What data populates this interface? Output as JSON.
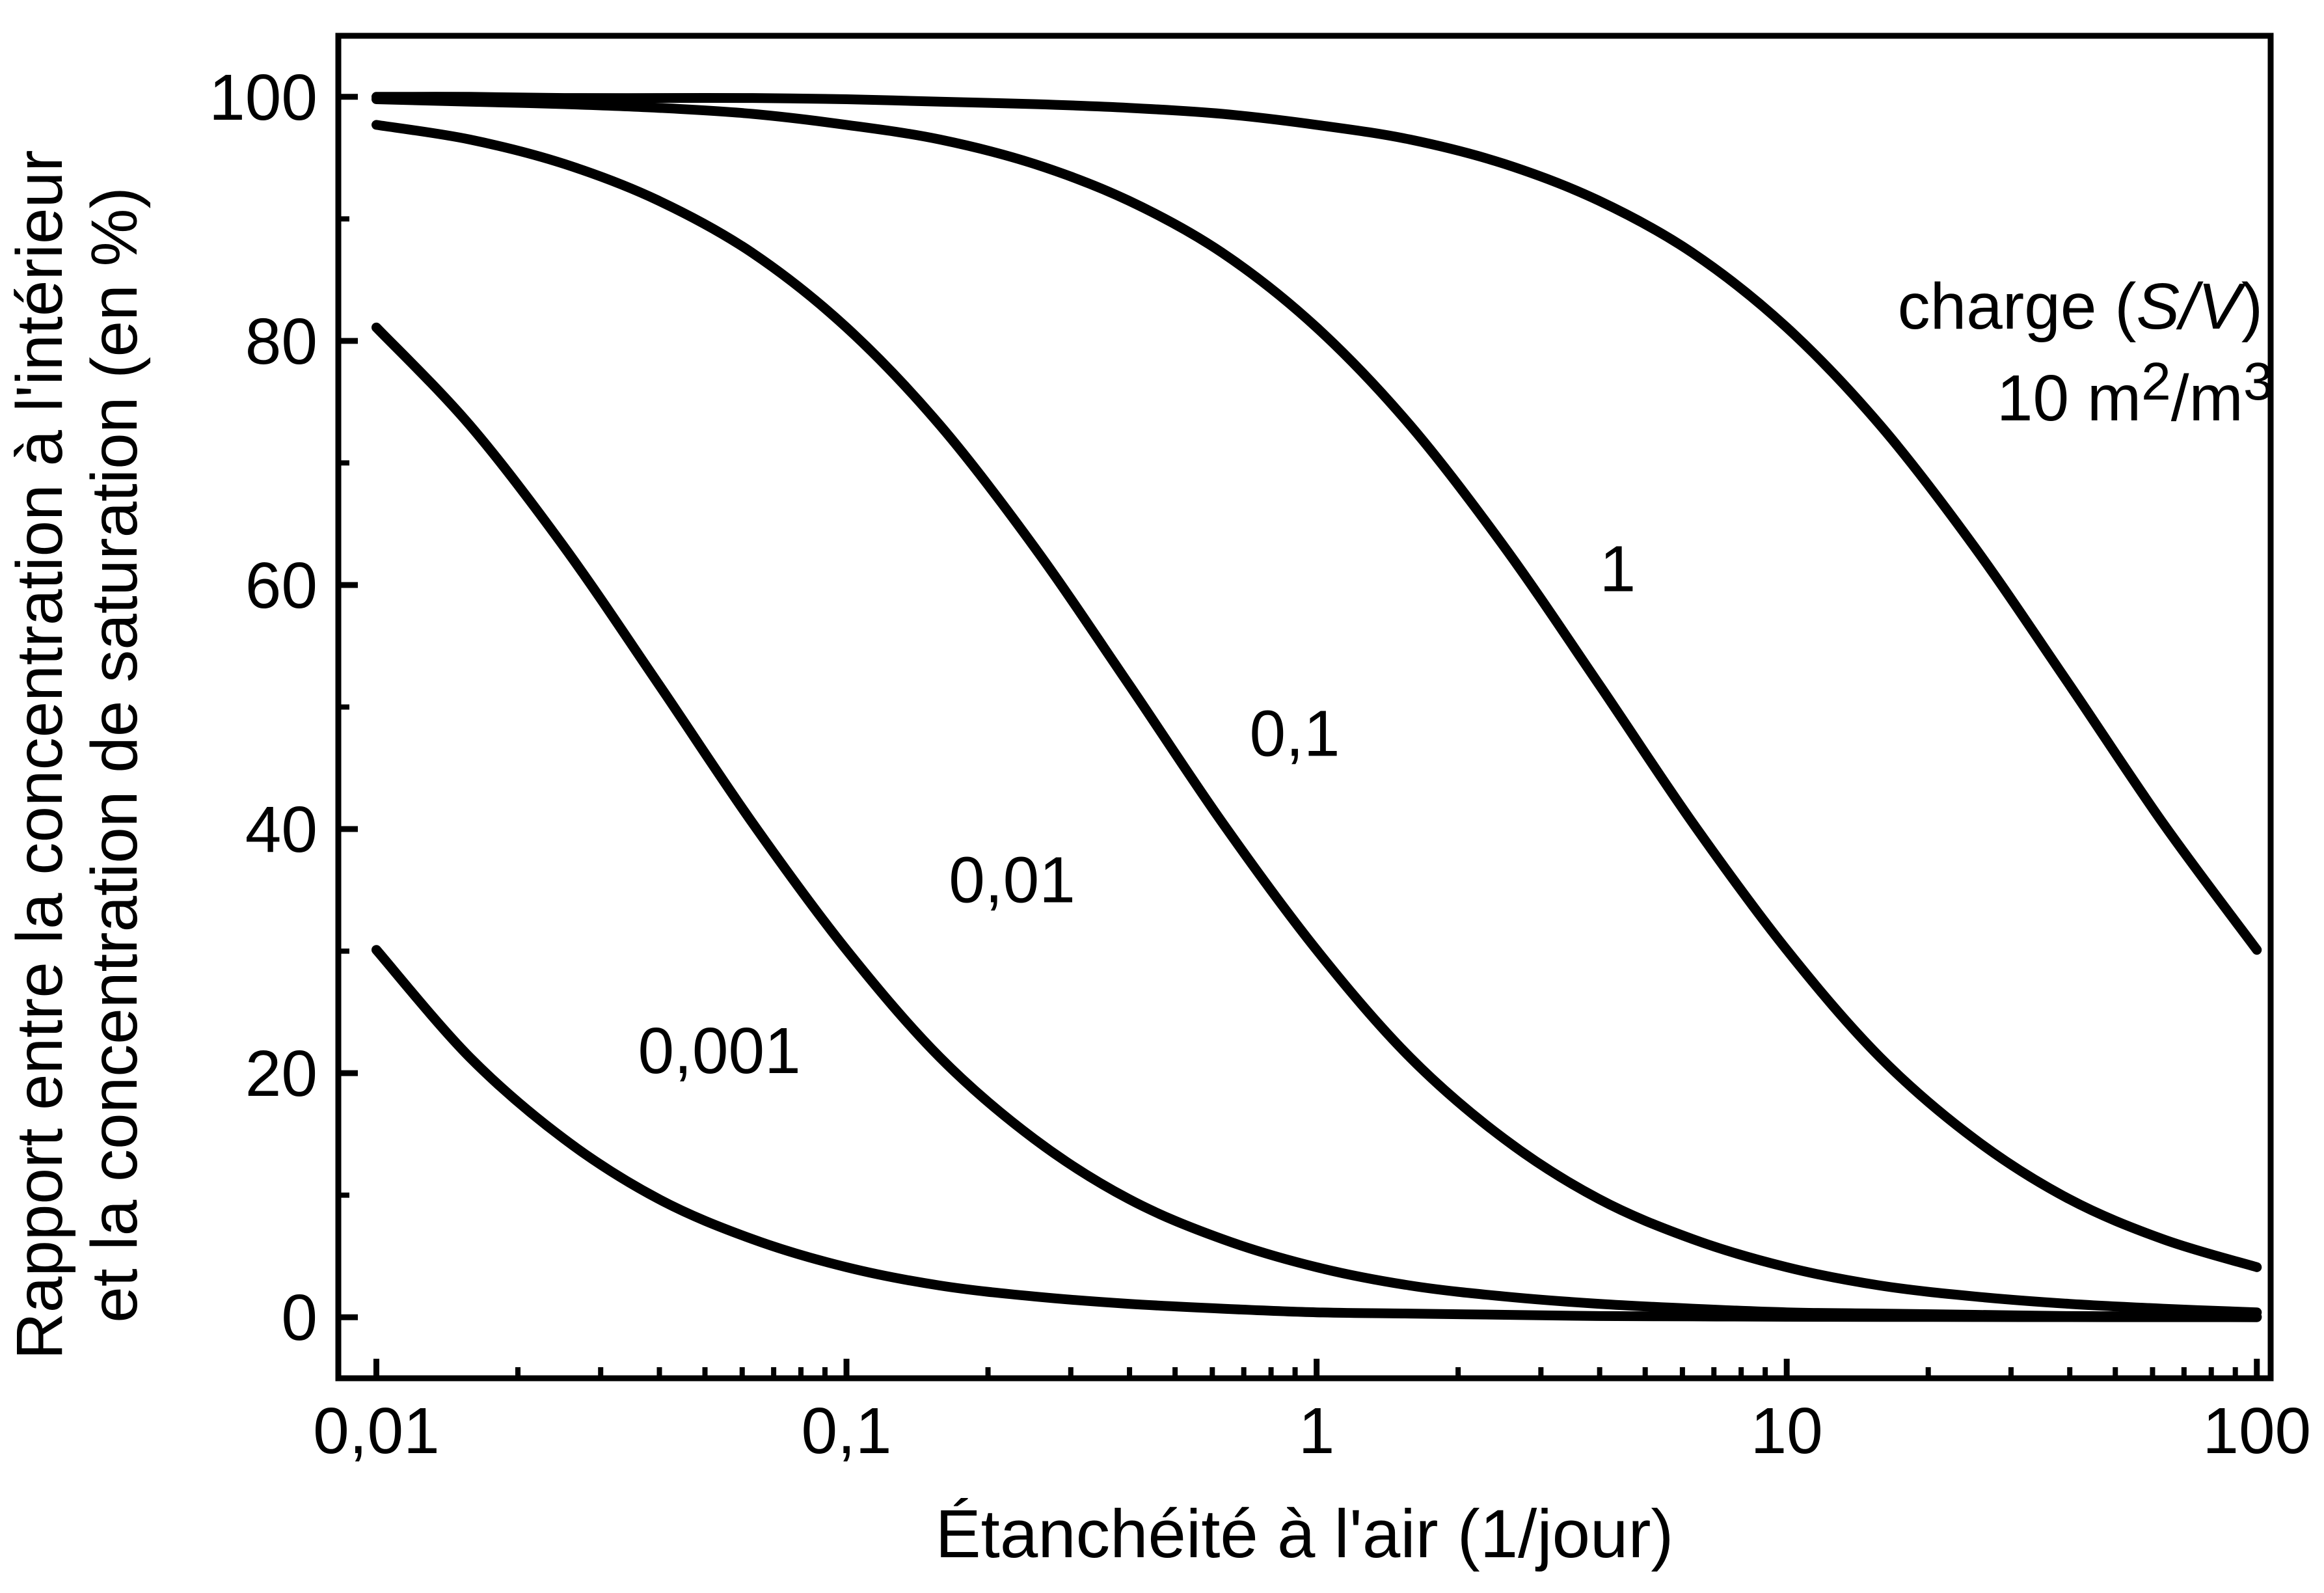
{
  "chart_data": {
    "type": "line",
    "title": "",
    "xlabel": "Étanchéité à l'air (1/jour)",
    "ylabel_lines": [
      "Rapport entre la concentration à l'intérieur",
      "et la concentration de saturation (en %)"
    ],
    "x_scale": "log",
    "xlim": [
      0.0083,
      107
    ],
    "ylim": [
      -5,
      105
    ],
    "grid": false,
    "line_color": "#000000",
    "x_ticks": {
      "values": [
        0.01,
        0.1,
        1,
        10,
        100
      ],
      "labels": [
        "0,01",
        "0,1",
        "1",
        "10",
        "100"
      ]
    },
    "y_ticks": {
      "values": [
        0,
        20,
        40,
        60,
        80,
        100
      ],
      "labels": [
        "0",
        "20",
        "40",
        "60",
        "80",
        "100"
      ]
    },
    "y_minor": [
      10,
      30,
      50,
      70,
      90
    ],
    "x": [
      0.01,
      0.0158,
      0.0251,
      0.0398,
      0.0631,
      0.1,
      0.158,
      0.251,
      0.398,
      0.631,
      1,
      1.58,
      2.51,
      3.98,
      6.31,
      10,
      15.8,
      25.1,
      39.8,
      63.1,
      100
    ],
    "series": [
      {
        "name": "0,001",
        "charge_m2_per_m3": 0.001,
        "values": [
          30.1,
          21.3,
          14.6,
          9.7,
          6.4,
          4.1,
          2.6,
          1.7,
          1.1,
          0.7,
          0.4,
          0.3,
          0.2,
          0.1,
          0.07,
          0.04,
          0.03,
          0.02,
          0.01,
          0.007,
          0.004
        ]
      },
      {
        "name": "0,01",
        "charge_m2_per_m3": 0.01,
        "values": [
          81.1,
          73.1,
          63.1,
          51.9,
          40.5,
          30.1,
          21.3,
          14.6,
          9.7,
          6.4,
          4.1,
          2.6,
          1.7,
          1.1,
          0.7,
          0.4,
          0.3,
          0.2,
          0.1,
          0.07,
          0.04
        ]
      },
      {
        "name": "0,1",
        "charge_m2_per_m3": 0.1,
        "values": [
          97.7,
          96.5,
          94.5,
          91.5,
          87.2,
          81.1,
          73.1,
          63.1,
          51.9,
          40.5,
          30.1,
          21.3,
          14.6,
          9.7,
          6.4,
          4.1,
          2.6,
          1.7,
          1.1,
          0.7,
          0.4
        ]
      },
      {
        "name": "1",
        "charge_m2_per_m3": 1,
        "values": [
          99.8,
          99.6,
          99.4,
          99.1,
          98.6,
          97.7,
          96.5,
          94.5,
          91.5,
          87.2,
          81.1,
          73.1,
          63.1,
          51.9,
          40.5,
          30.1,
          21.3,
          14.6,
          9.7,
          6.4,
          4.1
        ]
      },
      {
        "name": "10",
        "charge_m2_per_m3": 10,
        "values": [
          100,
          100,
          99.9,
          99.9,
          99.9,
          99.8,
          99.6,
          99.4,
          99.1,
          98.6,
          97.7,
          96.5,
          94.5,
          91.5,
          87.2,
          81.1,
          73.1,
          63.1,
          51.9,
          40.5,
          30.1
        ]
      }
    ],
    "annotations": [
      {
        "text": "0,001",
        "x": 0.036,
        "y": 20,
        "anchor": "start"
      },
      {
        "text": "0,01",
        "x": 0.165,
        "y": 34,
        "anchor": "start"
      },
      {
        "text": "0,1",
        "x": 0.72,
        "y": 46,
        "anchor": "start"
      },
      {
        "text": "1",
        "x": 4.0,
        "y": 59.5,
        "anchor": "start"
      },
      {
        "text": "charge (S/V)",
        "x": 103,
        "y": 81,
        "anchor": "end",
        "segments": [
          {
            "t": "charge ("
          },
          {
            "t": "S/V",
            "italic": true
          },
          {
            "t": ")"
          }
        ]
      },
      {
        "text": "10 m²/m³",
        "x": 55,
        "y": 73.5,
        "anchor": "middle",
        "segments": [
          {
            "t": "10 m"
          },
          {
            "t": "2",
            "sup": true
          },
          {
            "t": "/m"
          },
          {
            "t": "3",
            "sup": true
          }
        ]
      }
    ]
  }
}
